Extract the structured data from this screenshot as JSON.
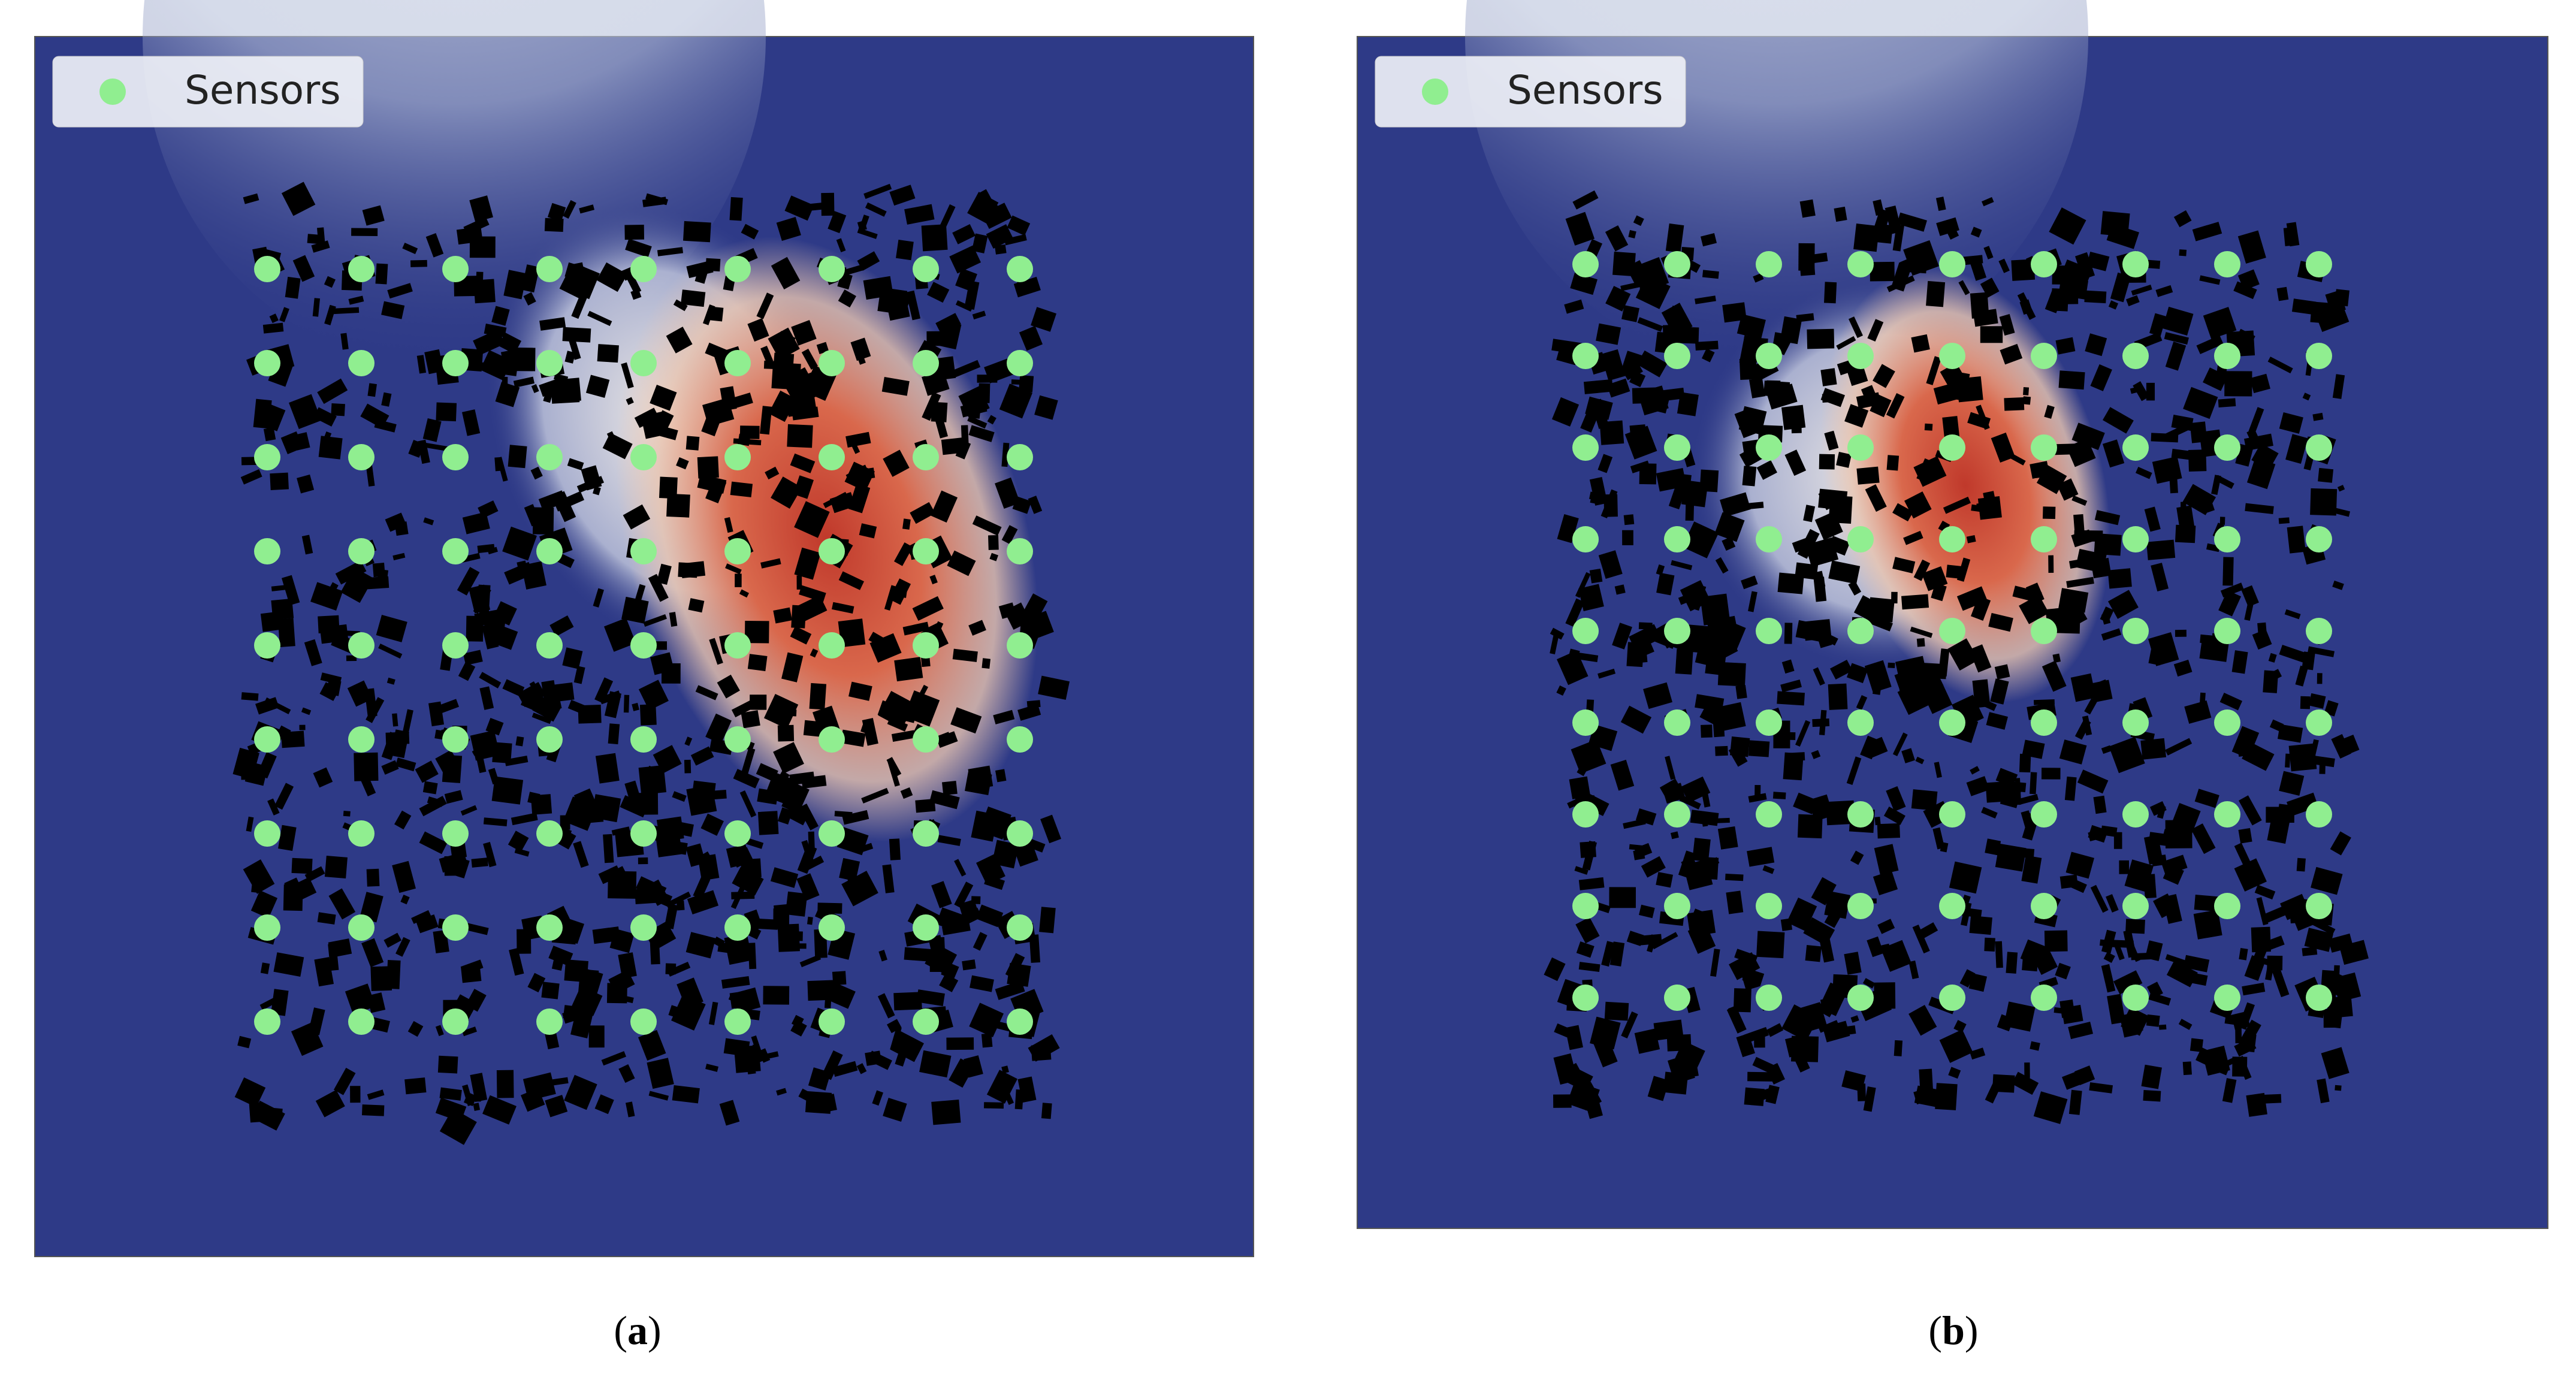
{
  "panels": [
    {
      "legend": "Sensors",
      "caption": [
        "(",
        "a",
        ")"
      ]
    },
    {
      "legend": "Sensors",
      "caption": [
        "(",
        "b",
        ")"
      ]
    }
  ]
}
